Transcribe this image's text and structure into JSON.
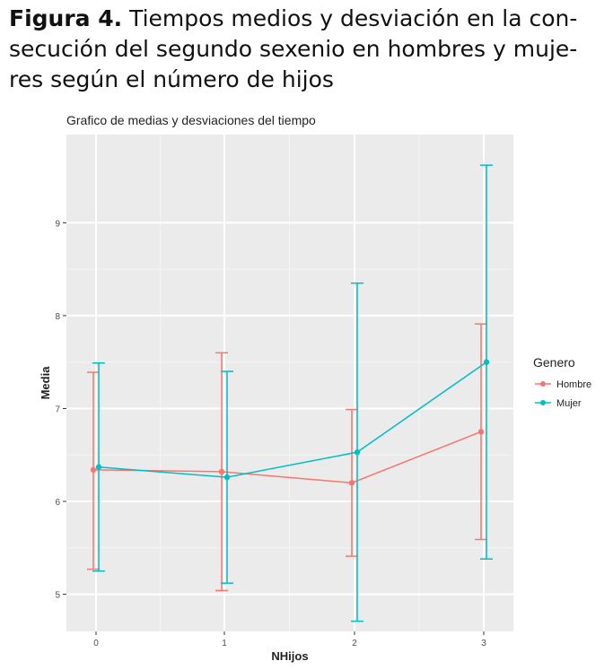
{
  "caption": {
    "label": "Figura 4.",
    "line1": "Tiempos medios y desviación en la con-",
    "line2": "secución del segundo sexenio en hombres y muje-",
    "line3": "res según el número de hijos"
  },
  "chart_data": {
    "type": "line",
    "title": "Grafico de medias y desviaciones del tiempo",
    "xlabel": "NHijos",
    "ylabel": "Media",
    "categories": [
      "0",
      "1",
      "2",
      "3"
    ],
    "ylim": [
      4.6,
      9.95
    ],
    "yticks": [
      5,
      6,
      7,
      8,
      9
    ],
    "legend_title": "Genero",
    "legend_position": "right",
    "grid": true,
    "series": [
      {
        "name": "Hombre",
        "color": "#F8766D",
        "mean": [
          6.34,
          6.32,
          6.2,
          6.75
        ],
        "lower": [
          5.27,
          5.04,
          5.41,
          5.59
        ],
        "upper": [
          7.39,
          7.6,
          6.99,
          7.91
        ]
      },
      {
        "name": "Mujer",
        "color": "#00BFC4",
        "mean": [
          6.37,
          6.26,
          6.53,
          7.5
        ],
        "lower": [
          5.25,
          5.12,
          4.71,
          5.38
        ],
        "upper": [
          7.49,
          7.4,
          8.35,
          9.62
        ]
      }
    ]
  }
}
